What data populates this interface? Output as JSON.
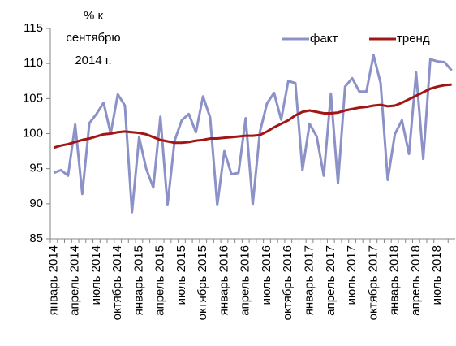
{
  "chart_data": {
    "type": "line",
    "annotation": [
      "% к",
      "сентябрю",
      "2014 г."
    ],
    "categories": [
      "январь 2014",
      null,
      null,
      "апрель 2014",
      null,
      null,
      "июль 2014",
      null,
      null,
      "октябрь 2014",
      null,
      null,
      "январь 2015",
      null,
      null,
      "апрель 2015",
      null,
      null,
      "июль 2015",
      null,
      null,
      "октябрь 2015",
      null,
      null,
      "январь 2016",
      null,
      null,
      "апрель 2016",
      null,
      null,
      "июль 2016",
      null,
      null,
      "октябрь 2016",
      null,
      null,
      "январь 2017",
      null,
      null,
      "апрель 2017",
      null,
      null,
      "июль 2017",
      null,
      null,
      "октябрь 2017",
      null,
      null,
      "январь 2018",
      null,
      null,
      "апрель 2018",
      null,
      null,
      "июль 2018",
      null,
      null
    ],
    "series": [
      {
        "name": "факт",
        "color": "#8c92c8",
        "values": [
          94.4,
          94.8,
          94.0,
          101.3,
          91.4,
          101.5,
          102.8,
          104.4,
          100.0,
          105.6,
          104.0,
          88.8,
          99.5,
          95.0,
          92.3,
          102.4,
          89.8,
          99.0,
          101.9,
          102.8,
          100.2,
          105.3,
          102.3,
          89.8,
          97.5,
          94.2,
          94.4,
          102.2,
          89.9,
          100.2,
          104.3,
          105.8,
          102.0,
          107.5,
          107.2,
          94.8,
          101.4,
          99.6,
          94.0,
          105.7,
          92.9,
          106.7,
          107.9,
          106.0,
          106.0,
          111.2,
          107.2,
          93.4,
          99.9,
          101.9,
          97.1,
          108.7,
          96.4,
          110.6,
          110.3,
          110.2,
          109.0
        ]
      },
      {
        "name": "тренд",
        "color": "#a31515",
        "values": [
          98.0,
          98.3,
          98.5,
          98.8,
          99.1,
          99.3,
          99.6,
          99.9,
          100.0,
          100.2,
          100.3,
          100.2,
          100.1,
          99.9,
          99.5,
          99.1,
          98.9,
          98.7,
          98.7,
          98.8,
          99.0,
          99.1,
          99.3,
          99.3,
          99.4,
          99.5,
          99.6,
          99.7,
          99.7,
          99.8,
          100.3,
          100.9,
          101.4,
          101.9,
          102.6,
          103.1,
          103.3,
          103.1,
          102.9,
          102.9,
          103.0,
          103.3,
          103.5,
          103.7,
          103.8,
          104.0,
          104.1,
          103.9,
          104.0,
          104.4,
          104.9,
          105.4,
          105.9,
          106.4,
          106.7,
          106.9,
          107.0
        ]
      }
    ],
    "ylim": [
      85,
      115
    ],
    "yticks": [
      85,
      90,
      95,
      100,
      105,
      110,
      115
    ],
    "grid": false,
    "legend": "top-right"
  }
}
